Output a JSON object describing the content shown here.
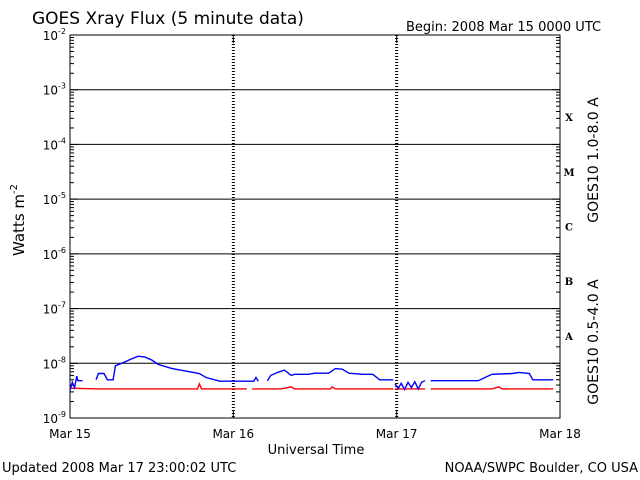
{
  "header": {
    "title": "GOES Xray Flux (5 minute data)",
    "begin": "Begin:  2008 Mar 15 0000 UTC"
  },
  "footer": {
    "updated": "Updated 2008 Mar 17 23:00:02 UTC",
    "source": "NOAA/SWPC Boulder, CO USA"
  },
  "chart_data": {
    "type": "line",
    "title": "GOES Xray Flux (5 minute data)",
    "xlabel": "Universal Time",
    "ylabel": "Watts m",
    "ylabel_exp": "-2",
    "y_scale": "log",
    "ylim": [
      1e-09,
      0.01
    ],
    "xlim": [
      "2008-03-15 00:00",
      "2008-03-18 00:00"
    ],
    "x_ticks": [
      "Mar 15",
      "Mar 16",
      "Mar 17",
      "Mar 18"
    ],
    "y_ticks": [
      {
        "base": "10",
        "exp": "-9",
        "value": 1e-09
      },
      {
        "base": "10",
        "exp": "-8",
        "value": 1e-08
      },
      {
        "base": "10",
        "exp": "-7",
        "value": 1e-07
      },
      {
        "base": "10",
        "exp": "-6",
        "value": 1e-06
      },
      {
        "base": "10",
        "exp": "-5",
        "value": 1e-05
      },
      {
        "base": "10",
        "exp": "-4",
        "value": 0.0001
      },
      {
        "base": "10",
        "exp": "-3",
        "value": 0.001
      },
      {
        "base": "10",
        "exp": "-2",
        "value": 0.01
      }
    ],
    "flare_classes": [
      {
        "label": "A",
        "low": 1e-08
      },
      {
        "label": "B",
        "low": 1e-07
      },
      {
        "label": "C",
        "low": 1e-06
      },
      {
        "label": "M",
        "low": 1e-05
      },
      {
        "label": "X",
        "low": 0.0001
      }
    ],
    "series": [
      {
        "name": "GOES10 1.0-8.0 A",
        "color": "#ff0000",
        "segments": [
          [
            [
              "2008-03-15 00:00",
              3.5e-09
            ],
            [
              "2008-03-15 04:00",
              3.4e-09
            ],
            [
              "2008-03-15 08:00",
              3.4e-09
            ],
            [
              "2008-03-15 12:00",
              3.4e-09
            ],
            [
              "2008-03-15 16:00",
              3.4e-09
            ],
            [
              "2008-03-15 18:45",
              3.4e-09
            ],
            [
              "2008-03-15 19:00",
              4.2e-09
            ],
            [
              "2008-03-15 19:20",
              3.4e-09
            ],
            [
              "2008-03-16 00:00",
              3.4e-09
            ],
            [
              "2008-03-16 02:00",
              3.4e-09
            ]
          ],
          [
            [
              "2008-03-16 02:45",
              3.4e-09
            ],
            [
              "2008-03-16 07:00",
              3.4e-09
            ],
            [
              "2008-03-16 08:30",
              3.7e-09
            ],
            [
              "2008-03-16 09:00",
              3.4e-09
            ],
            [
              "2008-03-16 14:15",
              3.4e-09
            ],
            [
              "2008-03-16 14:30",
              3.7e-09
            ],
            [
              "2008-03-16 15:00",
              3.4e-09
            ],
            [
              "2008-03-16 23:30",
              3.4e-09
            ]
          ],
          [
            [
              "2008-03-16 23:45",
              3.4e-09
            ],
            [
              "2008-03-17 04:10",
              3.4e-09
            ]
          ],
          [
            [
              "2008-03-17 05:00",
              3.4e-09
            ],
            [
              "2008-03-17 14:00",
              3.4e-09
            ],
            [
              "2008-03-17 15:00",
              3.7e-09
            ],
            [
              "2008-03-17 15:30",
              3.4e-09
            ],
            [
              "2008-03-17 23:00",
              3.4e-09
            ]
          ]
        ]
      },
      {
        "name": "GOES10 0.5-4.0 A",
        "color": "#0000ff",
        "segments": [
          [
            [
              "2008-03-15 00:00",
              3.2e-09
            ],
            [
              "2008-03-15 00:20",
              4.5e-09
            ],
            [
              "2008-03-15 00:40",
              3.6e-09
            ],
            [
              "2008-03-15 01:00",
              5.8e-09
            ],
            [
              "2008-03-15 01:10",
              4.8e-09
            ],
            [
              "2008-03-15 01:50",
              4.8e-09
            ]
          ],
          [
            [
              "2008-03-15 03:50",
              5e-09
            ],
            [
              "2008-03-15 04:10",
              6.5e-09
            ],
            [
              "2008-03-15 05:00",
              6.5e-09
            ],
            [
              "2008-03-15 05:30",
              5e-09
            ],
            [
              "2008-03-15 06:20",
              5e-09
            ],
            [
              "2008-03-15 06:40",
              9e-09
            ],
            [
              "2008-03-15 08:00",
              1.05e-08
            ],
            [
              "2008-03-15 09:00",
              1.2e-08
            ],
            [
              "2008-03-15 10:00",
              1.35e-08
            ],
            [
              "2008-03-15 11:00",
              1.3e-08
            ],
            [
              "2008-03-15 12:00",
              1.15e-08
            ],
            [
              "2008-03-15 13:00",
              9.5e-09
            ],
            [
              "2008-03-15 15:00",
              8e-09
            ],
            [
              "2008-03-15 17:00",
              7.2e-09
            ],
            [
              "2008-03-15 19:00",
              6.5e-09
            ],
            [
              "2008-03-15 20:00",
              5.5e-09
            ],
            [
              "2008-03-15 22:00",
              4.7e-09
            ],
            [
              "2008-03-16 00:00",
              4.7e-09
            ],
            [
              "2008-03-16 03:00",
              4.7e-09
            ],
            [
              "2008-03-16 03:20",
              5.5e-09
            ],
            [
              "2008-03-16 03:40",
              4.7e-09
            ]
          ],
          [
            [
              "2008-03-16 05:00",
              4.8e-09
            ],
            [
              "2008-03-16 05:30",
              6e-09
            ],
            [
              "2008-03-16 06:30",
              6.8e-09
            ],
            [
              "2008-03-16 07:30",
              7.5e-09
            ],
            [
              "2008-03-16 08:30",
              6e-09
            ],
            [
              "2008-03-16 09:00",
              6.3e-09
            ],
            [
              "2008-03-16 11:00",
              6.3e-09
            ],
            [
              "2008-03-16 12:00",
              6.6e-09
            ],
            [
              "2008-03-16 14:00",
              6.6e-09
            ],
            [
              "2008-03-16 15:00",
              8e-09
            ],
            [
              "2008-03-16 16:00",
              7.8e-09
            ],
            [
              "2008-03-16 17:00",
              6.6e-09
            ],
            [
              "2008-03-16 19:00",
              6.3e-09
            ],
            [
              "2008-03-16 20:30",
              6.3e-09
            ],
            [
              "2008-03-16 21:30",
              5e-09
            ],
            [
              "2008-03-16 23:30",
              5e-09
            ]
          ],
          [
            [
              "2008-03-16 23:45",
              4.2e-09
            ],
            [
              "2008-03-17 00:15",
              3.5e-09
            ],
            [
              "2008-03-17 00:40",
              4.3e-09
            ],
            [
              "2008-03-17 01:10",
              3.3e-09
            ],
            [
              "2008-03-17 01:40",
              4.5e-09
            ],
            [
              "2008-03-17 02:10",
              3.6e-09
            ],
            [
              "2008-03-17 02:40",
              4.6e-09
            ],
            [
              "2008-03-17 03:10",
              3.4e-09
            ],
            [
              "2008-03-17 03:40",
              4.5e-09
            ],
            [
              "2008-03-17 04:10",
              4.8e-09
            ]
          ],
          [
            [
              "2008-03-17 05:00",
              4.8e-09
            ],
            [
              "2008-03-17 12:00",
              4.8e-09
            ],
            [
              "2008-03-17 13:00",
              5.5e-09
            ],
            [
              "2008-03-17 14:00",
              6.3e-09
            ],
            [
              "2008-03-17 17:00",
              6.5e-09
            ],
            [
              "2008-03-17 18:00",
              6.8e-09
            ],
            [
              "2008-03-17 19:30",
              6.5e-09
            ],
            [
              "2008-03-17 20:00",
              5e-09
            ],
            [
              "2008-03-17 23:00",
              5e-09
            ]
          ]
        ]
      }
    ],
    "grid": "horizontal decade lines; dashed vertical day separators"
  }
}
